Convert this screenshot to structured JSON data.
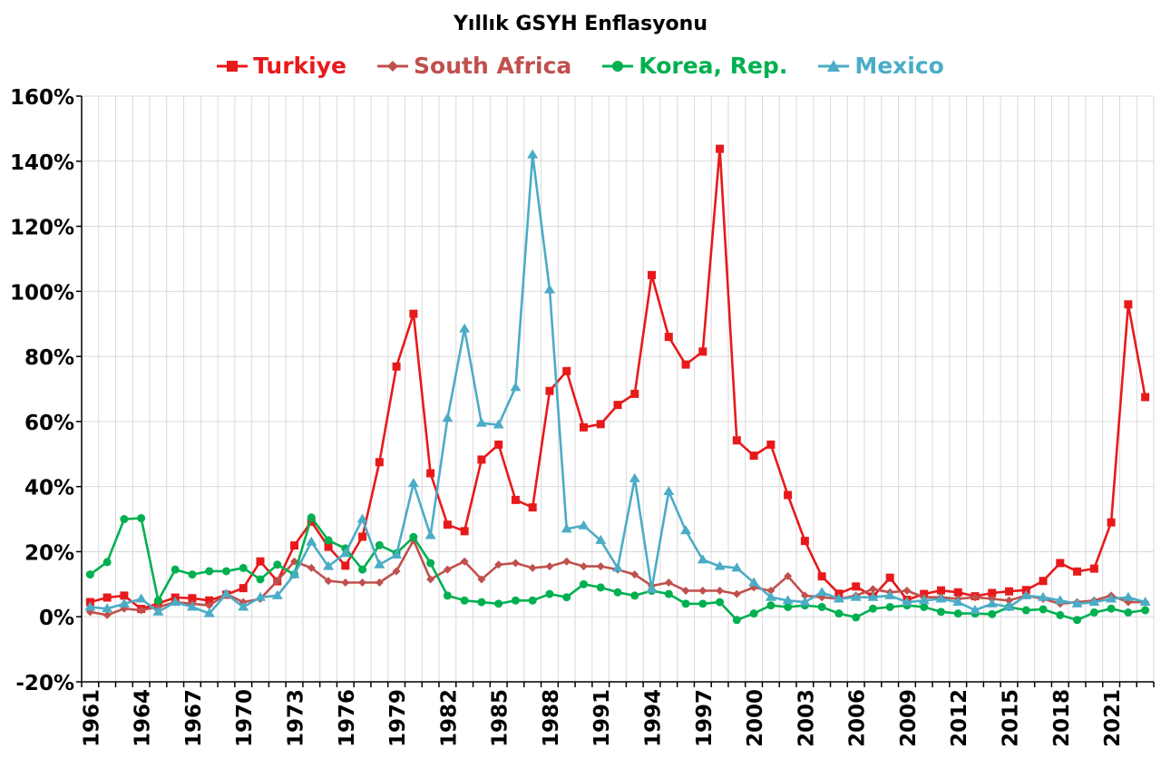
{
  "chart_data": {
    "type": "line",
    "title": "Yıllık GSYH Enflasyonu",
    "ylim": [
      -20,
      160
    ],
    "yticks": [
      "-20%",
      "0%",
      "20%",
      "40%",
      "60%",
      "80%",
      "100%",
      "120%",
      "140%",
      "160%"
    ],
    "ytick_values": [
      -20,
      0,
      20,
      40,
      60,
      80,
      100,
      120,
      140,
      160
    ],
    "x": [
      1961,
      1962,
      1963,
      1964,
      1965,
      1966,
      1967,
      1968,
      1969,
      1970,
      1971,
      1972,
      1973,
      1974,
      1975,
      1976,
      1977,
      1978,
      1979,
      1980,
      1981,
      1982,
      1983,
      1984,
      1985,
      1986,
      1987,
      1988,
      1989,
      1990,
      1991,
      1992,
      1993,
      1994,
      1995,
      1996,
      1997,
      1998,
      1999,
      2000,
      2001,
      2002,
      2003,
      2004,
      2005,
      2006,
      2007,
      2008,
      2009,
      2010,
      2011,
      2012,
      2013,
      2014,
      2015,
      2016,
      2017,
      2018,
      2019,
      2020,
      2021,
      2022,
      2023
    ],
    "xtick_labels": [
      "1961",
      "1964",
      "1967",
      "1970",
      "1973",
      "1976",
      "1979",
      "1982",
      "1985",
      "1988",
      "1991",
      "1994",
      "1997",
      "2000",
      "2003",
      "2006",
      "2009",
      "2012",
      "2015",
      "2018",
      "2021"
    ],
    "xtick_values": [
      1961,
      1964,
      1967,
      1970,
      1973,
      1976,
      1979,
      1982,
      1985,
      1988,
      1991,
      1994,
      1997,
      2000,
      2003,
      2006,
      2009,
      2012,
      2015,
      2018,
      2021
    ],
    "legend_position": "top",
    "grid": true,
    "series": [
      {
        "name": "Turkiye",
        "color": "#e8191b",
        "marker": "square",
        "values": [
          4.5,
          5.9,
          6.5,
          2.4,
          4.1,
          5.9,
          5.7,
          5.0,
          6.8,
          8.8,
          17.0,
          10.9,
          21.9,
          29.2,
          21.5,
          15.7,
          24.6,
          47.5,
          76.9,
          93.1,
          44.1,
          28.3,
          26.3,
          48.3,
          52.9,
          35.9,
          33.6,
          69.4,
          75.5,
          58.2,
          59.2,
          65.1,
          68.5,
          105.0,
          86.0,
          77.5,
          81.5,
          143.8,
          54.2,
          49.5,
          52.9,
          37.4,
          23.3,
          12.4,
          7.1,
          9.3,
          6.2,
          12.0,
          5.2,
          7.0,
          8.1,
          7.5,
          6.3,
          7.3,
          7.8,
          8.2,
          11.0,
          16.5,
          13.9,
          14.8,
          29.0,
          96.0,
          67.5
        ]
      },
      {
        "name": "South Africa",
        "color": "#c0504d",
        "marker": "diamond",
        "values": [
          1.5,
          0.5,
          2.5,
          2.0,
          3.0,
          4.5,
          4.0,
          3.5,
          7.0,
          4.5,
          5.5,
          11.0,
          17.0,
          15.0,
          11.0,
          10.5,
          10.5,
          10.5,
          14.0,
          23.5,
          11.5,
          14.5,
          17.0,
          11.5,
          16.0,
          16.5,
          15.0,
          15.5,
          17.0,
          15.5,
          15.5,
          14.5,
          13.0,
          9.5,
          10.5,
          8.0,
          8.0,
          8.0,
          7.0,
          9.0,
          8.0,
          12.5,
          6.5,
          6.0,
          5.5,
          6.5,
          8.5,
          7.5,
          8.0,
          6.0,
          6.0,
          5.5,
          6.0,
          5.5,
          5.0,
          6.5,
          5.5,
          4.0,
          4.5,
          5.0,
          6.5,
          4.5,
          4.5
        ]
      },
      {
        "name": "Korea, Rep.",
        "color": "#00b050",
        "marker": "circle",
        "values": [
          13.0,
          16.8,
          30.0,
          30.3,
          5.0,
          14.5,
          13.0,
          14.0,
          14.0,
          15.0,
          11.5,
          16.0,
          13.0,
          30.5,
          23.5,
          21.0,
          14.5,
          22.0,
          19.5,
          24.5,
          16.5,
          6.5,
          5.0,
          4.5,
          4.0,
          5.0,
          5.0,
          7.0,
          6.0,
          10.0,
          9.0,
          7.5,
          6.5,
          8.0,
          7.0,
          4.0,
          4.0,
          4.5,
          -1.0,
          1.0,
          3.5,
          3.0,
          3.5,
          3.0,
          1.0,
          -0.2,
          2.5,
          3.0,
          3.5,
          3.0,
          1.5,
          1.0,
          1.0,
          0.8,
          3.0,
          2.0,
          2.3,
          0.5,
          -1.0,
          1.3,
          2.5,
          1.3,
          2.0
        ]
      },
      {
        "name": "Mexico",
        "color": "#4bacc6",
        "marker": "triangle",
        "values": [
          3.0,
          2.5,
          4.0,
          5.5,
          1.5,
          4.5,
          3.0,
          1.0,
          7.0,
          3.0,
          6.0,
          6.5,
          13.0,
          23.0,
          15.5,
          19.5,
          30.0,
          16.0,
          19.0,
          41.0,
          25.0,
          61.0,
          88.5,
          59.5,
          59.0,
          70.5,
          142.0,
          100.5,
          27.0,
          28.0,
          23.5,
          15.0,
          42.5,
          8.5,
          38.5,
          26.5,
          17.5,
          15.5,
          15.0,
          10.5,
          6.0,
          5.0,
          4.5,
          7.5,
          5.5,
          6.0,
          6.0,
          6.5,
          4.5,
          5.0,
          5.5,
          4.5,
          2.0,
          4.0,
          3.0,
          6.5,
          6.0,
          5.0,
          4.0,
          4.5,
          5.5,
          6.0,
          4.5
        ]
      }
    ]
  }
}
